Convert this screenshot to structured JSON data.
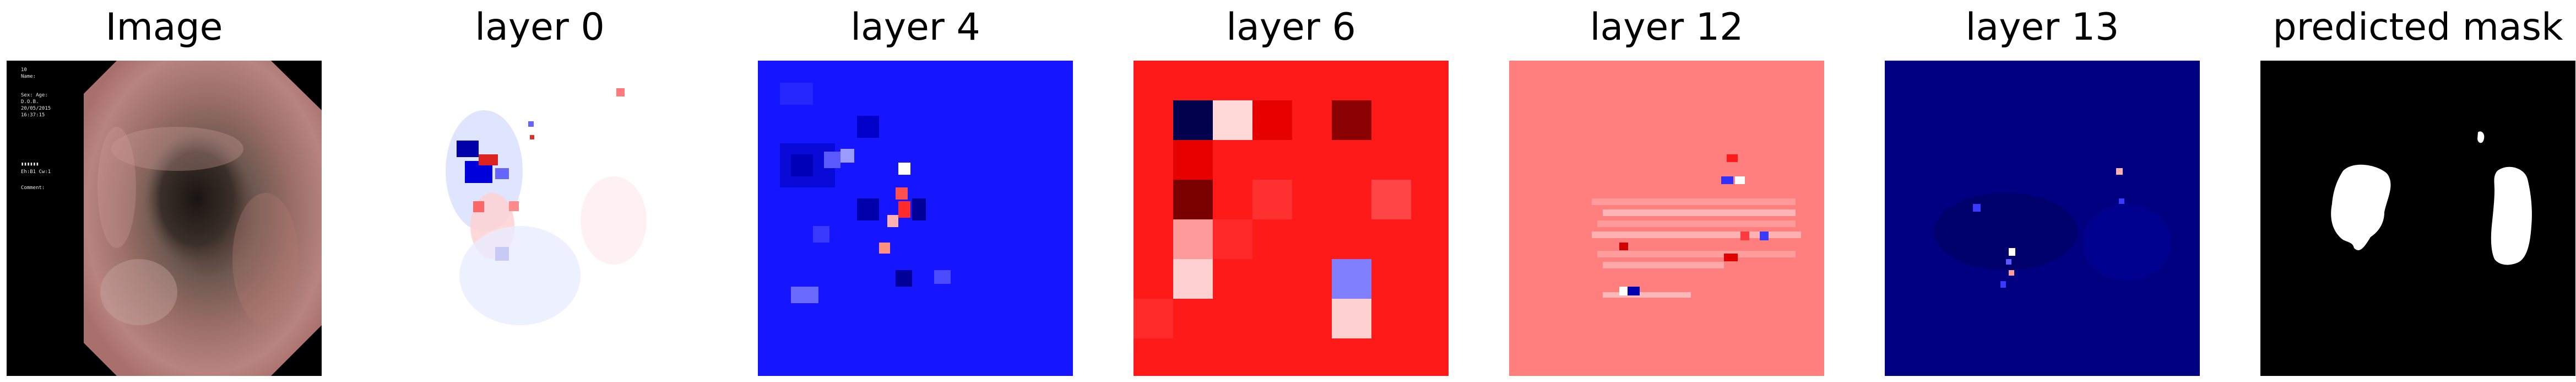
{
  "panels": [
    {
      "id": "image",
      "title": "Image"
    },
    {
      "id": "layer0",
      "title": "layer 0"
    },
    {
      "id": "layer4",
      "title": "layer 4"
    },
    {
      "id": "layer6",
      "title": "layer 6"
    },
    {
      "id": "layer12",
      "title": "layer 12"
    },
    {
      "id": "layer13",
      "title": "layer 13"
    },
    {
      "id": "mask",
      "title": "predicted mask"
    }
  ],
  "image_overlay": [
    "10",
    "Name:",
    "Sex: Age:",
    "D.O.B.",
    "20/05/2015",
    "16:37:15",
    "",
    "▮▮▮▮▮▮",
    "Eh:B1 Cw:1",
    "",
    "Comment:"
  ],
  "colors": {
    "seismic_blue": "#0000ff",
    "seismic_red": "#ff0000",
    "navy": "#00008b",
    "mask_white": "#ffffff",
    "mask_black": "#000000"
  }
}
